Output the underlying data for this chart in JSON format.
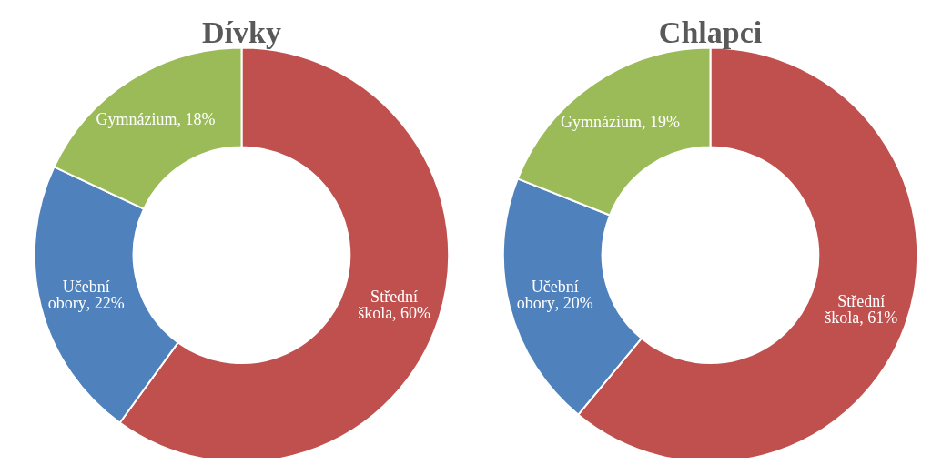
{
  "chart_data": [
    {
      "type": "donut",
      "title": "Dívky",
      "categories": [
        "Střední škola",
        "Učební obory",
        "Gymnázium"
      ],
      "values": [
        60,
        22,
        18
      ],
      "colors": [
        "#c0504d",
        "#4f81bd",
        "#9bbb59"
      ],
      "value_labels": [
        ", 60%",
        ", 22%",
        ", 18%"
      ]
    },
    {
      "type": "donut",
      "title": "Chlapci",
      "categories": [
        "Střední škola",
        "Učební obory",
        "Gymnázium"
      ],
      "values": [
        61,
        20,
        19
      ],
      "colors": [
        "#c0504d",
        "#4f81bd",
        "#9bbb59"
      ],
      "value_labels": [
        ", 61%",
        ", 20%",
        ", 19%"
      ]
    }
  ]
}
